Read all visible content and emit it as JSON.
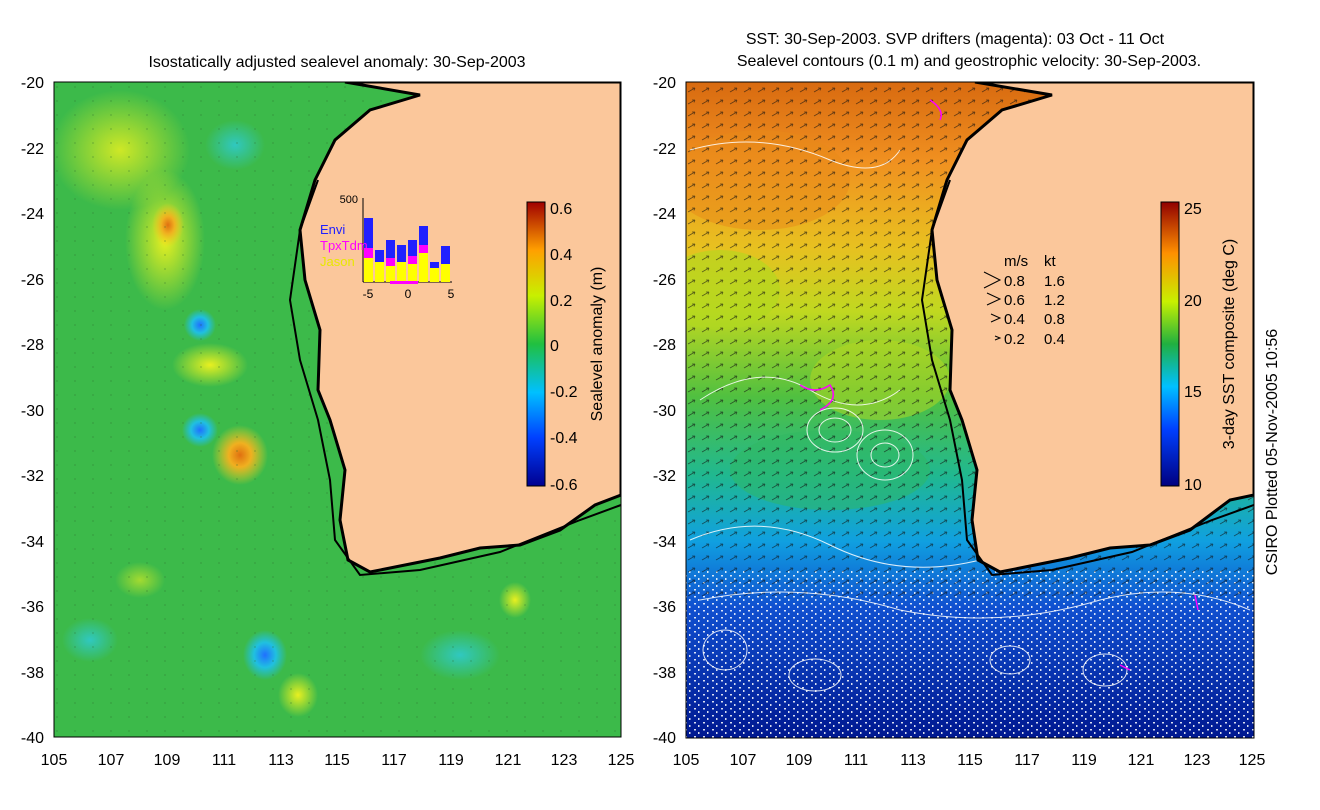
{
  "left_map": {
    "title": "Isostatically adjusted sealevel anomaly: 30-Sep-2003",
    "y_ticks": [
      "-20",
      "-22",
      "-24",
      "-26",
      "-28",
      "-30",
      "-32",
      "-34",
      "-36",
      "-38",
      "-40"
    ],
    "x_ticks": [
      "105",
      "107",
      "109",
      "111",
      "113",
      "115",
      "117",
      "119",
      "121",
      "123",
      "125"
    ],
    "colorbar": {
      "label": "Sealevel anomaly (m)",
      "ticks": [
        "0.6",
        "0.4",
        "0.2",
        "0",
        "-0.2",
        "-0.4",
        "-0.6"
      ]
    },
    "inset": {
      "ymax_label": "500",
      "legend": [
        "Envi",
        "TpxTdm",
        "Jason"
      ],
      "legend_colors": [
        "#2020ff",
        "#ff00ff",
        "#ffff00"
      ],
      "x_ticks": [
        "-5",
        "0",
        "5"
      ]
    }
  },
  "right_map": {
    "title_line1": "SST: 30-Sep-2003. SVP drifters (magenta): 03 Oct - 11 Oct",
    "title_line2": "Sealevel contours (0.1 m) and geostrophic velocity: 30-Sep-2003.",
    "y_ticks": [
      "-20",
      "-22",
      "-24",
      "-26",
      "-28",
      "-30",
      "-32",
      "-34",
      "-36",
      "-38",
      "-40"
    ],
    "x_ticks": [
      "105",
      "107",
      "109",
      "111",
      "113",
      "115",
      "117",
      "119",
      "121",
      "123",
      "125"
    ],
    "colorbar": {
      "label": "3-day SST composite (deg C)",
      "ticks": [
        "25",
        "20",
        "15",
        "10"
      ]
    },
    "velocity_key": {
      "header_ms": "m/s",
      "header_kt": "kt",
      "rows": [
        {
          "ms": "0.8",
          "kt": "1.6"
        },
        {
          "ms": "0.6",
          "kt": "1.2"
        },
        {
          "ms": "0.4",
          "kt": "0.8"
        },
        {
          "ms": "0.2",
          "kt": "0.4"
        }
      ]
    }
  },
  "credit": "CSIRO Plotted 05-Nov-2005 10:56",
  "colors": {
    "land": "#fbc79b",
    "sea_mid": "#39b54a",
    "coast": "#000000"
  }
}
